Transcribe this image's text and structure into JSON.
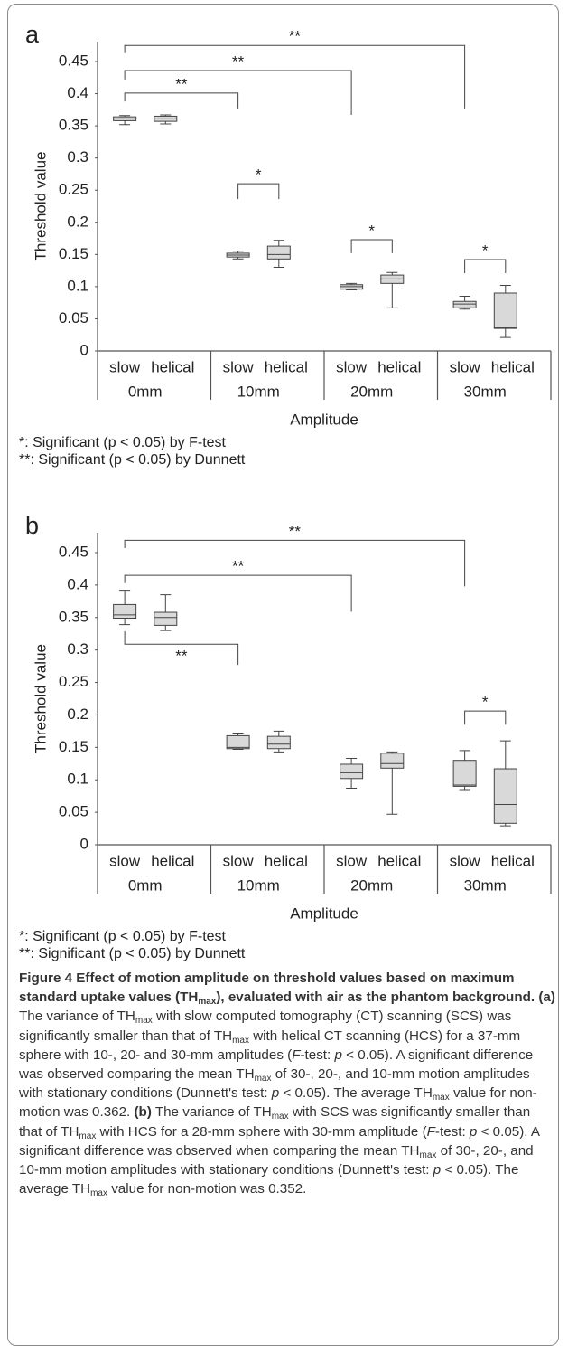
{
  "chart_data": [
    {
      "type": "box",
      "label": "a",
      "ylabel": "Threshold value",
      "xlabel": "Amplitude",
      "groups": [
        "0mm",
        "10mm",
        "20mm",
        "30mm"
      ],
      "series": [
        {
          "name": "slow",
          "color": "#d9d9d9",
          "boxes": [
            {
              "whisker_low": 0.352,
              "q1": 0.358,
              "median": 0.362,
              "q3": 0.364,
              "whisker_high": 0.366
            },
            {
              "whisker_low": 0.143,
              "q1": 0.146,
              "median": 0.149,
              "q3": 0.152,
              "whisker_high": 0.155
            },
            {
              "whisker_low": 0.095,
              "q1": 0.096,
              "median": 0.1,
              "q3": 0.103,
              "whisker_high": 0.105
            },
            {
              "whisker_low": 0.065,
              "q1": 0.067,
              "median": 0.073,
              "q3": 0.077,
              "whisker_high": 0.085
            }
          ]
        },
        {
          "name": "helical",
          "color": "#d9d9d9",
          "boxes": [
            {
              "whisker_low": 0.353,
              "q1": 0.357,
              "median": 0.362,
              "q3": 0.365,
              "whisker_high": 0.367
            },
            {
              "whisker_low": 0.13,
              "q1": 0.143,
              "median": 0.15,
              "q3": 0.163,
              "whisker_high": 0.172
            },
            {
              "whisker_low": 0.067,
              "q1": 0.105,
              "median": 0.112,
              "q3": 0.118,
              "whisker_high": 0.122
            },
            {
              "whisker_low": 0.021,
              "q1": 0.035,
              "median": 0.036,
              "q3": 0.09,
              "whisker_high": 0.102
            }
          ]
        }
      ],
      "ylim": [
        0,
        0.45
      ],
      "yticks": [
        0,
        0.05,
        0.1,
        0.15,
        0.2,
        0.25,
        0.3,
        0.35,
        0.4,
        0.45
      ],
      "brackets": [
        {
          "text": "**",
          "from": [
            0,
            0
          ],
          "to": [
            3,
            0
          ],
          "y": 0.475,
          "from_end": 0.463,
          "to_end": 0.377
        },
        {
          "text": "**",
          "from": [
            0,
            0
          ],
          "to": [
            2,
            0
          ],
          "y": 0.436,
          "from_end": 0.422,
          "to_end": 0.367
        },
        {
          "text": "**",
          "from": [
            0,
            0
          ],
          "to": [
            1,
            0
          ],
          "y": 0.401,
          "from_end": 0.388,
          "to_end": 0.377
        },
        {
          "text": "*",
          "from": [
            1,
            0
          ],
          "to": [
            1,
            1
          ],
          "y": 0.26,
          "from_end": 0.236,
          "to_end": 0.236
        },
        {
          "text": "*",
          "from": [
            2,
            0
          ],
          "to": [
            2,
            1
          ],
          "y": 0.173,
          "from_end": 0.152,
          "to_end": 0.152
        },
        {
          "text": "*",
          "from": [
            3,
            0
          ],
          "to": [
            3,
            1
          ],
          "y": 0.142,
          "from_end": 0.121,
          "to_end": 0.121
        }
      ],
      "footnotes": [
        "*: Significant (p < 0.05) by F-test",
        "**: Significant (p < 0.05) by Dunnett"
      ]
    },
    {
      "type": "box",
      "label": "b",
      "ylabel": "Threshold value",
      "xlabel": "Amplitude",
      "groups": [
        "0mm",
        "10mm",
        "20mm",
        "30mm"
      ],
      "series": [
        {
          "name": "slow",
          "color": "#d9d9d9",
          "boxes": [
            {
              "whisker_low": 0.339,
              "q1": 0.349,
              "median": 0.354,
              "q3": 0.37,
              "whisker_high": 0.392
            },
            {
              "whisker_low": 0.147,
              "q1": 0.148,
              "median": 0.15,
              "q3": 0.168,
              "whisker_high": 0.172
            },
            {
              "whisker_low": 0.087,
              "q1": 0.102,
              "median": 0.111,
              "q3": 0.124,
              "whisker_high": 0.133
            },
            {
              "whisker_low": 0.085,
              "q1": 0.09,
              "median": 0.092,
              "q3": 0.13,
              "whisker_high": 0.145
            }
          ]
        },
        {
          "name": "helical",
          "color": "#d9d9d9",
          "boxes": [
            {
              "whisker_low": 0.33,
              "q1": 0.338,
              "median": 0.35,
              "q3": 0.358,
              "whisker_high": 0.385
            },
            {
              "whisker_low": 0.143,
              "q1": 0.148,
              "median": 0.155,
              "q3": 0.167,
              "whisker_high": 0.175
            },
            {
              "whisker_low": 0.047,
              "q1": 0.118,
              "median": 0.125,
              "q3": 0.141,
              "whisker_high": 0.143
            },
            {
              "whisker_low": 0.029,
              "q1": 0.033,
              "median": 0.062,
              "q3": 0.117,
              "whisker_high": 0.16
            }
          ]
        }
      ],
      "ylim": [
        0,
        0.45
      ],
      "yticks": [
        0,
        0.05,
        0.1,
        0.15,
        0.2,
        0.25,
        0.3,
        0.35,
        0.4,
        0.45
      ],
      "brackets": [
        {
          "text": "**",
          "from": [
            0,
            0
          ],
          "to": [
            3,
            0
          ],
          "y": 0.469,
          "from_end": 0.457,
          "to_end": 0.398
        },
        {
          "text": "**",
          "from": [
            0,
            0
          ],
          "to": [
            2,
            0
          ],
          "y": 0.415,
          "from_end": 0.403,
          "to_end": 0.359
        },
        {
          "text": "**",
          "from": [
            0,
            0
          ],
          "to": [
            1,
            0
          ],
          "y": 0.309,
          "from_end": 0.329,
          "to_end": 0.277
        },
        {
          "text": "*",
          "from": [
            3,
            0
          ],
          "to": [
            3,
            1
          ],
          "y": 0.206,
          "from_end": 0.185,
          "to_end": 0.185
        }
      ],
      "footnotes": [
        "*: Significant (p < 0.05) by F-test",
        "**: Significant (p < 0.05) by Dunnett"
      ]
    }
  ],
  "caption": {
    "runs": [
      {
        "text": "Figure 4 Effect of motion amplitude on threshold values based on maximum standard uptake values (TH",
        "style": "bold"
      },
      {
        "text": "max",
        "style": "bold sub"
      },
      {
        "text": "), evaluated with air as the phantom background. (a)",
        "style": "bold"
      },
      {
        "text": " The variance of TH"
      },
      {
        "text": "max",
        "style": "sub"
      },
      {
        "text": " with slow computed tomography (CT) scanning (SCS) was significantly smaller than that of TH"
      },
      {
        "text": "max",
        "style": "sub"
      },
      {
        "text": " with helical CT scanning (HCS) for a 37-mm sphere with 10-, 20- and 30-mm amplitudes ("
      },
      {
        "text": "F",
        "style": "italic"
      },
      {
        "text": "-test: "
      },
      {
        "text": "p",
        "style": "italic"
      },
      {
        "text": " < 0.05). A significant difference was observed comparing the mean TH"
      },
      {
        "text": "max",
        "style": "sub"
      },
      {
        "text": " of 30-, 20-, and 10-mm motion amplitudes with stationary conditions (Dunnett's test: "
      },
      {
        "text": "p",
        "style": "italic"
      },
      {
        "text": " < 0.05). The average TH"
      },
      {
        "text": "max",
        "style": "sub"
      },
      {
        "text": " value for non-motion was 0.362. "
      },
      {
        "text": "(b)",
        "style": "bold"
      },
      {
        "text": " The variance of TH"
      },
      {
        "text": "max",
        "style": "sub"
      },
      {
        "text": " with SCS was significantly smaller than that of TH"
      },
      {
        "text": "max",
        "style": "sub"
      },
      {
        "text": " with HCS for a 28-mm sphere with 30-mm amplitude ("
      },
      {
        "text": "F",
        "style": "italic"
      },
      {
        "text": "-test: "
      },
      {
        "text": "p",
        "style": "italic"
      },
      {
        "text": " < 0.05). A significant difference was observed when comparing the mean TH"
      },
      {
        "text": "max",
        "style": "sub"
      },
      {
        "text": " of 30-, 20-, and 10-mm motion amplitudes with stationary conditions (Dunnett's test: "
      },
      {
        "text": "p",
        "style": "italic"
      },
      {
        "text": " < 0.05). The average TH"
      },
      {
        "text": "max",
        "style": "sub"
      },
      {
        "text": " value for non-motion was 0.352."
      }
    ]
  }
}
